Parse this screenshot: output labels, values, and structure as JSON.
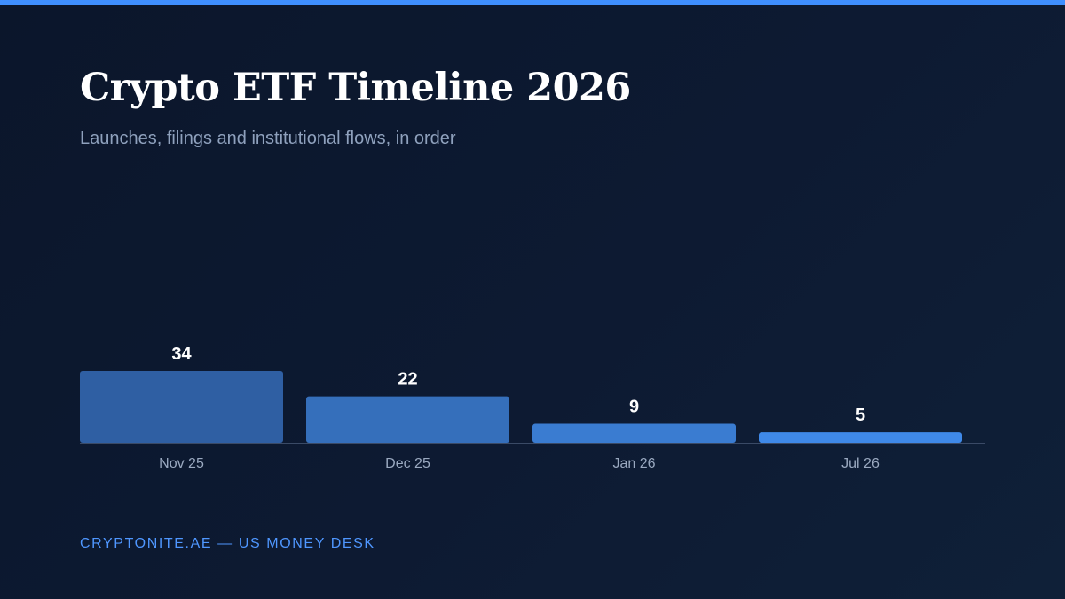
{
  "header": {
    "title": "Crypto ETF Timeline 2026",
    "subtitle": "Launches, filings and institutional flows, in order"
  },
  "footer": {
    "text": "CRYPTONITE.AE — US MONEY DESK"
  },
  "colors": {
    "accent": "#3f8fff",
    "bar_colors": [
      "#2f5fa3",
      "#356fbb",
      "#3a7cd1",
      "#3f89e8"
    ],
    "baseline": "#3a4a66"
  },
  "chart_data": {
    "type": "bar",
    "categories": [
      "Nov 25",
      "Dec 25",
      "Jan 26",
      "Jul 26"
    ],
    "values": [
      34,
      22,
      9,
      5
    ],
    "title": "",
    "xlabel": "",
    "ylabel": "",
    "ylim": [
      0,
      34
    ],
    "grid": false,
    "data_labels": true
  }
}
